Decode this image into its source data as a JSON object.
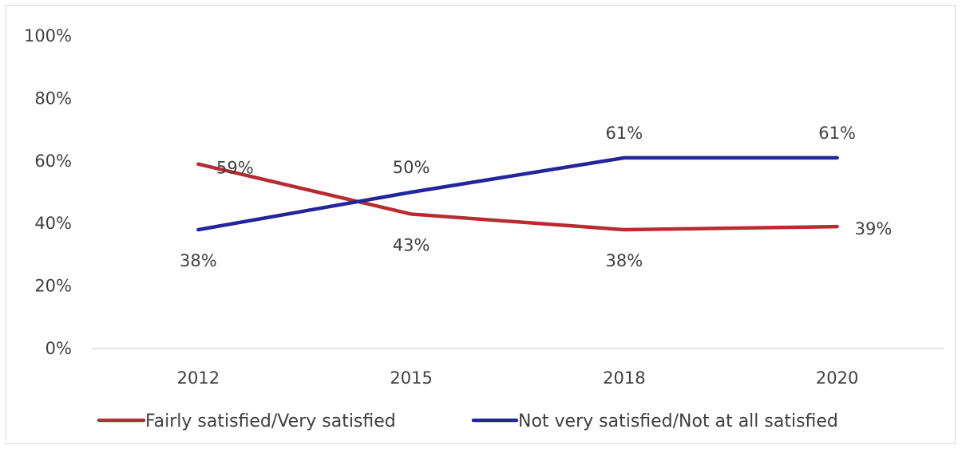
{
  "chart_data": {
    "type": "line",
    "x": [
      "2012",
      "2015",
      "2018",
      "2020"
    ],
    "yticks": [
      "0%",
      "20%",
      "40%",
      "60%",
      "80%",
      "100%"
    ],
    "ylim": [
      0,
      100
    ],
    "grid": false,
    "legend_position": "bottom",
    "series": [
      {
        "name": "Fairly satisfied/Very satisfied",
        "values": [
          59,
          43,
          38,
          39
        ],
        "labels": [
          "59%",
          "43%",
          "38%",
          "39%"
        ],
        "color": "#b72c32"
      },
      {
        "name": "Not very satisfied/Not at all satisfied",
        "values": [
          38,
          50,
          61,
          61
        ],
        "labels": [
          "38%",
          "50%",
          "61%",
          "61%"
        ],
        "color": "#24249c"
      }
    ]
  }
}
